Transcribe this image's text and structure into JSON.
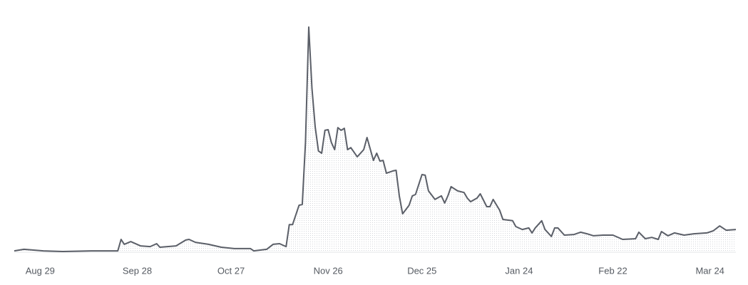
{
  "chart_data": {
    "type": "area",
    "x": [
      -8,
      -5,
      1,
      7,
      16,
      24,
      25,
      26,
      28,
      31,
      34,
      36,
      37,
      42,
      45,
      46,
      48,
      52,
      56,
      60,
      65,
      66,
      70,
      72,
      74,
      76,
      77,
      78,
      80,
      81,
      82,
      83,
      84,
      85,
      86,
      87,
      88,
      89,
      90,
      91,
      92,
      93,
      94,
      95,
      96,
      98,
      100,
      101,
      103,
      104,
      105,
      106,
      107,
      109,
      110,
      111,
      112,
      114,
      115,
      116,
      118,
      119,
      120,
      122,
      124,
      125,
      126,
      127,
      129,
      131,
      132,
      133,
      135,
      136,
      138,
      139,
      140,
      142,
      143,
      146,
      147,
      149,
      151,
      152,
      153,
      155,
      156,
      158,
      159,
      160,
      162,
      165,
      167,
      169,
      171,
      174,
      177,
      180,
      184,
      185,
      187,
      189,
      191,
      192,
      194,
      196,
      199,
      202,
      206,
      208,
      210,
      212,
      215
    ],
    "values": [
      0.3,
      1,
      0.3,
      0,
      0.3,
      0.3,
      5.4,
      3.2,
      4.4,
      2.5,
      2.2,
      3.5,
      1.9,
      2.5,
      5.1,
      5.4,
      4.1,
      3.2,
      1.9,
      1.3,
      1.3,
      0.3,
      1,
      3.2,
      3.5,
      2.2,
      12,
      12,
      20.6,
      21,
      48.6,
      100,
      72.7,
      55.6,
      44.8,
      43.8,
      54,
      54.3,
      48.6,
      45.4,
      55.2,
      54,
      54.9,
      45.4,
      46.3,
      42.2,
      45.4,
      50.8,
      40.6,
      43.8,
      40.3,
      40.6,
      34.9,
      35.9,
      36.2,
      24.8,
      16.8,
      20.6,
      24.8,
      25.4,
      34.3,
      34,
      27,
      23.2,
      24.8,
      21.6,
      24.8,
      28.9,
      27,
      26.3,
      23.8,
      22.2,
      23.8,
      25.7,
      20,
      20,
      23.2,
      18.4,
      14.3,
      13.7,
      11.1,
      9.8,
      10.5,
      8.3,
      10.5,
      13.7,
      9.8,
      6.7,
      10.5,
      10.5,
      7.3,
      7.6,
      8.6,
      7.9,
      7,
      7.3,
      7.3,
      5.4,
      5.7,
      8.6,
      5.7,
      6.3,
      5.4,
      8.9,
      7,
      8.3,
      7.3,
      7.9,
      8.3,
      9.2,
      11.4,
      9.5,
      9.8
    ],
    "color": "#5b5f68",
    "xlim": [
      -8,
      215
    ],
    "ylim": [
      0,
      100
    ],
    "xticks": [
      {
        "value": 0,
        "label": "Aug 29"
      },
      {
        "value": 30,
        "label": "Sep 28"
      },
      {
        "value": 59,
        "label": "Oct 27"
      },
      {
        "value": 89,
        "label": "Nov 26"
      },
      {
        "value": 118,
        "label": "Dec 25"
      },
      {
        "value": 148,
        "label": "Jan 24"
      },
      {
        "value": 177,
        "label": "Feb 22"
      },
      {
        "value": 207,
        "label": "Mar 24"
      }
    ]
  }
}
